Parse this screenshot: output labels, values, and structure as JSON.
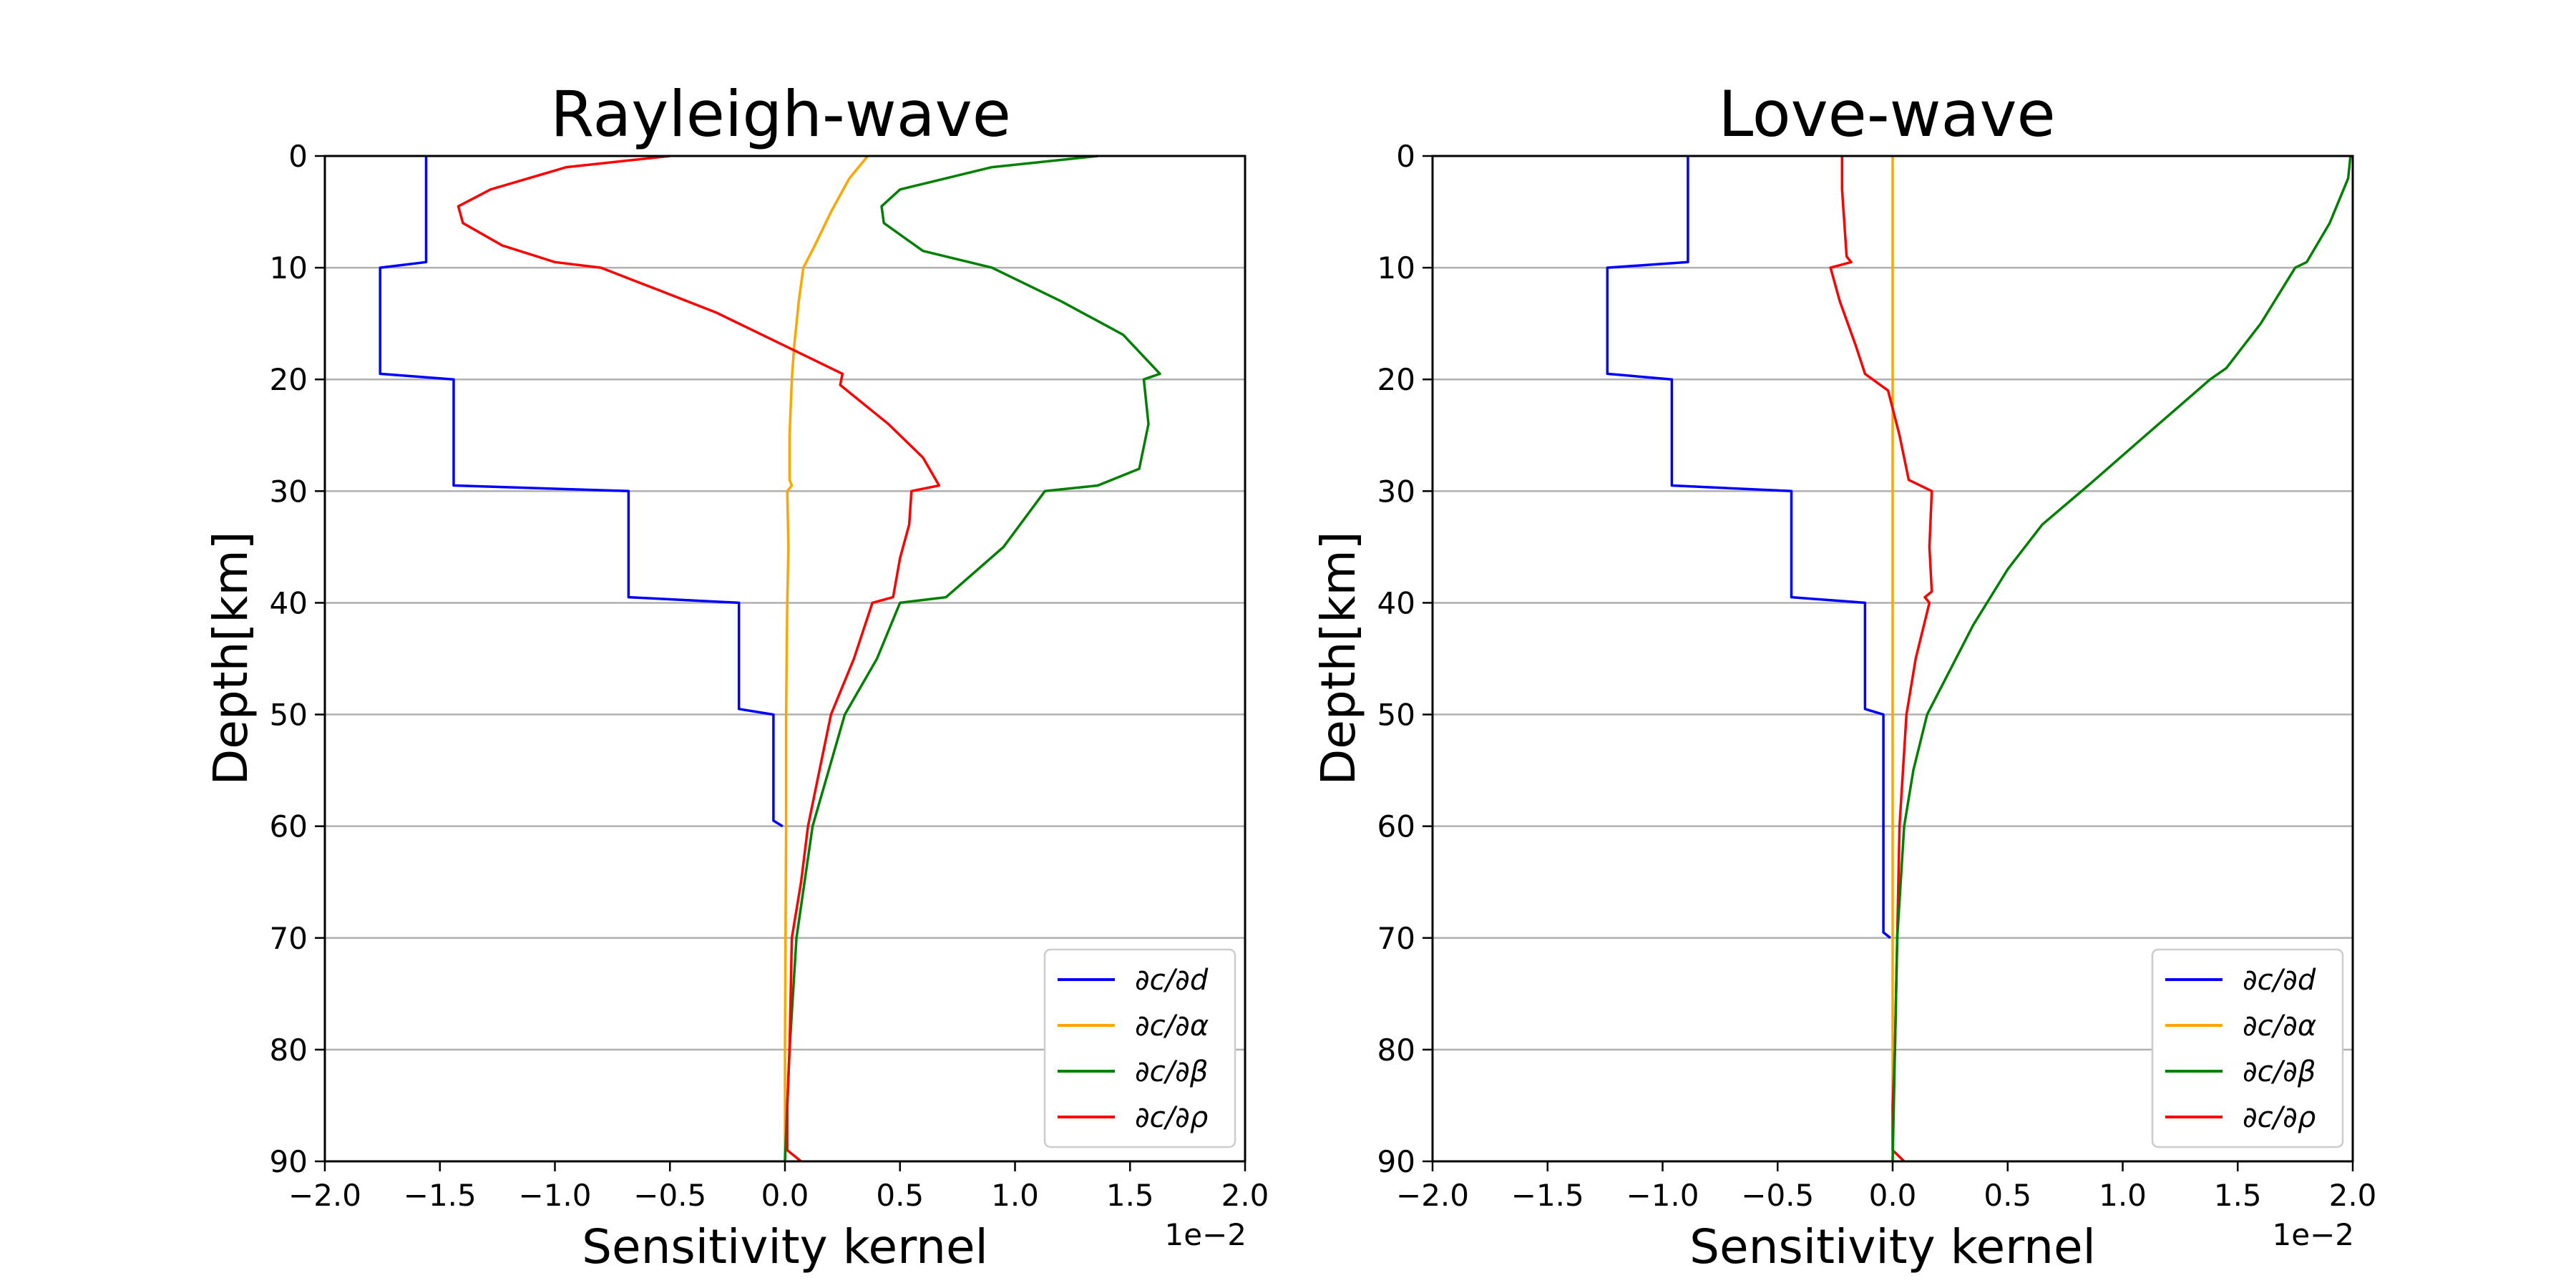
{
  "chart_data": [
    {
      "type": "line",
      "title": "Rayleigh-wave",
      "xlabel": "Sensitivity kernel",
      "ylabel": "Depth[km]",
      "x_offset_text": "1e−2",
      "xlim": [
        -2.0,
        2.0
      ],
      "ylim": [
        90,
        0
      ],
      "y_inverted": true,
      "grid": "horizontal",
      "legend_position": "lower-right",
      "x_ticks": [
        -2.0,
        -1.5,
        -1.0,
        -0.5,
        0.0,
        0.5,
        1.0,
        1.5,
        2.0
      ],
      "x_tick_labels": [
        "−2.0",
        "−1.5",
        "−1.0",
        "−0.5",
        "0.0",
        "0.5",
        "1.0",
        "1.5",
        "2.0"
      ],
      "y_ticks": [
        0,
        10,
        20,
        30,
        40,
        50,
        60,
        70,
        80,
        90
      ],
      "y_tick_labels": [
        "0",
        "10",
        "20",
        "30",
        "40",
        "50",
        "60",
        "70",
        "80",
        "90"
      ],
      "series": [
        {
          "name": "∂c/∂d",
          "color": "#0000ff",
          "step": true,
          "x": [
            -1.56,
            -1.56,
            -1.76,
            -1.76,
            -1.44,
            -1.44,
            -0.68,
            -0.68,
            -0.2,
            -0.2,
            -0.05,
            -0.05,
            -0.01
          ],
          "y": [
            0,
            9.5,
            10,
            19.5,
            20,
            29.5,
            30,
            39.5,
            40,
            49.5,
            50,
            59.5,
            60
          ]
        },
        {
          "name": "∂c/∂α",
          "color": "#ffa500",
          "x": [
            0.36,
            0.28,
            0.2,
            0.13,
            0.08,
            0.06,
            0.04,
            0.03,
            0.02,
            0.02,
            0.03,
            0.01,
            0.015,
            0.01,
            0.005,
            0.005,
            0.0,
            0.0
          ],
          "y": [
            0,
            2,
            5,
            8,
            10,
            13,
            17,
            20,
            25,
            29,
            29.5,
            30,
            35,
            40,
            50,
            60,
            80,
            90
          ]
        },
        {
          "name": "∂c/∂β",
          "color": "#008000",
          "x": [
            1.36,
            0.9,
            0.5,
            0.42,
            0.43,
            0.6,
            0.9,
            1.2,
            1.47,
            1.63,
            1.56,
            1.58,
            1.54,
            1.36,
            1.13,
            0.95,
            0.7,
            0.5,
            0.4,
            0.26,
            0.12,
            0.05,
            0.02,
            0.0
          ],
          "y": [
            0,
            1,
            3,
            4.5,
            6,
            8.5,
            10,
            13,
            16,
            19.5,
            20,
            24,
            28,
            29.5,
            30,
            35,
            39.5,
            40,
            45,
            50,
            60,
            70,
            80,
            90
          ]
        },
        {
          "name": "∂c/∂ρ",
          "color": "#ff0000",
          "x": [
            -0.5,
            -0.95,
            -1.28,
            -1.42,
            -1.4,
            -1.23,
            -1.0,
            -0.8,
            -0.55,
            -0.3,
            -0.05,
            0.15,
            0.25,
            0.24,
            0.45,
            0.6,
            0.67,
            0.55,
            0.54,
            0.5,
            0.47,
            0.38,
            0.3,
            0.2,
            0.15,
            0.1,
            0.07,
            0.03,
            0.02,
            0.01,
            0.01,
            0.07
          ],
          "y": [
            0,
            1,
            3,
            4.5,
            6,
            8,
            9.5,
            10,
            12,
            14,
            16.5,
            18.5,
            19.5,
            20.5,
            24,
            27,
            29.5,
            30,
            33,
            36,
            39.5,
            40,
            45,
            50,
            55,
            60,
            65,
            70,
            80,
            85,
            89,
            90
          ]
        }
      ]
    },
    {
      "type": "line",
      "title": "Love-wave",
      "xlabel": "Sensitivity kernel",
      "ylabel": "Depth[km]",
      "x_offset_text": "1e−2",
      "xlim": [
        -2.0,
        2.0
      ],
      "ylim": [
        90,
        0
      ],
      "y_inverted": true,
      "grid": "horizontal",
      "legend_position": "lower-right",
      "x_ticks": [
        -2.0,
        -1.5,
        -1.0,
        -0.5,
        0.0,
        0.5,
        1.0,
        1.5,
        2.0
      ],
      "x_tick_labels": [
        "−2.0",
        "−1.5",
        "−1.0",
        "−0.5",
        "0.0",
        "0.5",
        "1.0",
        "1.5",
        "2.0"
      ],
      "y_ticks": [
        0,
        10,
        20,
        30,
        40,
        50,
        60,
        70,
        80,
        90
      ],
      "y_tick_labels": [
        "0",
        "10",
        "20",
        "30",
        "40",
        "50",
        "60",
        "70",
        "80",
        "90"
      ],
      "series": [
        {
          "name": "∂c/∂d",
          "color": "#0000ff",
          "step": true,
          "x": [
            -0.89,
            -0.89,
            -1.24,
            -1.24,
            -0.96,
            -0.96,
            -0.44,
            -0.44,
            -0.12,
            -0.12,
            -0.04,
            -0.04,
            -0.01
          ],
          "y": [
            0,
            9.5,
            10,
            19.5,
            20,
            29.5,
            30,
            39.5,
            40,
            49.5,
            50,
            69.5,
            70
          ]
        },
        {
          "name": "∂c/∂α",
          "color": "#ffa500",
          "x": [
            0.0,
            0.0
          ],
          "y": [
            0,
            90
          ]
        },
        {
          "name": "∂c/∂ρ",
          "color": "#ff0000",
          "x": [
            -0.22,
            -0.22,
            -0.21,
            -0.2,
            -0.18,
            -0.27,
            -0.23,
            -0.16,
            -0.12,
            -0.02,
            0.03,
            0.07,
            0.17,
            0.16,
            0.17,
            0.14,
            0.16,
            0.1,
            0.06,
            0.03,
            0.02,
            0.01,
            0.0,
            0.0,
            0.05
          ],
          "y": [
            0,
            3,
            6,
            9,
            9.5,
            10,
            13,
            17,
            19.5,
            21,
            25,
            29,
            30,
            35,
            39,
            39.5,
            40,
            45,
            50,
            60,
            70,
            80,
            85,
            89,
            90
          ]
        },
        {
          "name": "∂c/∂β",
          "color": "#008000",
          "x": [
            1.99,
            1.98,
            1.9,
            1.8,
            1.75,
            1.6,
            1.45,
            1.38,
            1.1,
            0.85,
            0.65,
            0.5,
            0.35,
            0.25,
            0.15,
            0.09,
            0.05,
            0.02,
            0.0
          ],
          "y": [
            0,
            2,
            6,
            9.5,
            10,
            15,
            19,
            20,
            25,
            29.5,
            33,
            37,
            42,
            46,
            50,
            55,
            60,
            70,
            90
          ]
        }
      ]
    }
  ],
  "legend": {
    "labels": [
      "∂c/∂d",
      "∂c/∂α",
      "∂c/∂β",
      "∂c/∂ρ"
    ],
    "colors": [
      "#0000ff",
      "#ffa500",
      "#008000",
      "#ff0000"
    ]
  }
}
